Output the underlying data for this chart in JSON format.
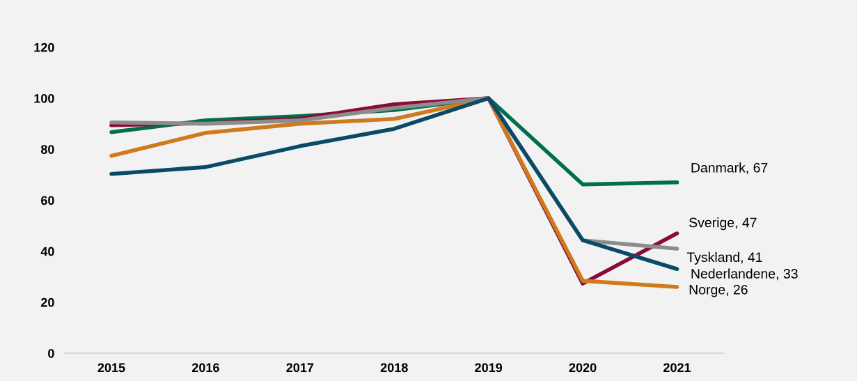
{
  "chart_data": {
    "type": "line",
    "categories": [
      "2015",
      "2016",
      "2017",
      "2018",
      "2019",
      "2020",
      "2021"
    ],
    "series": [
      {
        "color": "#00704a",
        "values": [
          86.7,
          91.3,
          93,
          95.4,
          100,
          66.2,
          67
        ]
      },
      {
        "color": "#8b0a3c",
        "values": [
          89.4,
          90.2,
          92,
          97.6,
          100,
          27.3,
          47
        ]
      },
      {
        "color": "#d07a1e",
        "values": [
          77.4,
          86.4,
          90,
          91.9,
          100,
          28.4,
          26
        ]
      },
      {
        "color": "#8c8c8c",
        "values": [
          90.5,
          90,
          91.3,
          96.2,
          100,
          44.3,
          41
        ]
      },
      {
        "color": "#0b4a66",
        "values": [
          70.3,
          73,
          81.2,
          88,
          100,
          44.3,
          33
        ]
      }
    ],
    "ylim": [
      0,
      120
    ],
    "yticks": [
      0,
      20,
      40,
      60,
      80,
      100,
      120
    ],
    "grid": false,
    "marker": "none",
    "line_style": "solid",
    "annotations": [
      {
        "text": "Danmark, 67",
        "x": "2021",
        "y": 67
      },
      {
        "text": "Sverige, 47",
        "x": "2021",
        "y": 47
      },
      {
        "text": "Tyskland, 41",
        "x": "2021",
        "y": 41
      },
      {
        "text": "Nederlandene, 33",
        "x": "2021",
        "y": 33
      },
      {
        "text": "Norge, 26",
        "x": "2021",
        "y": 26
      }
    ]
  }
}
